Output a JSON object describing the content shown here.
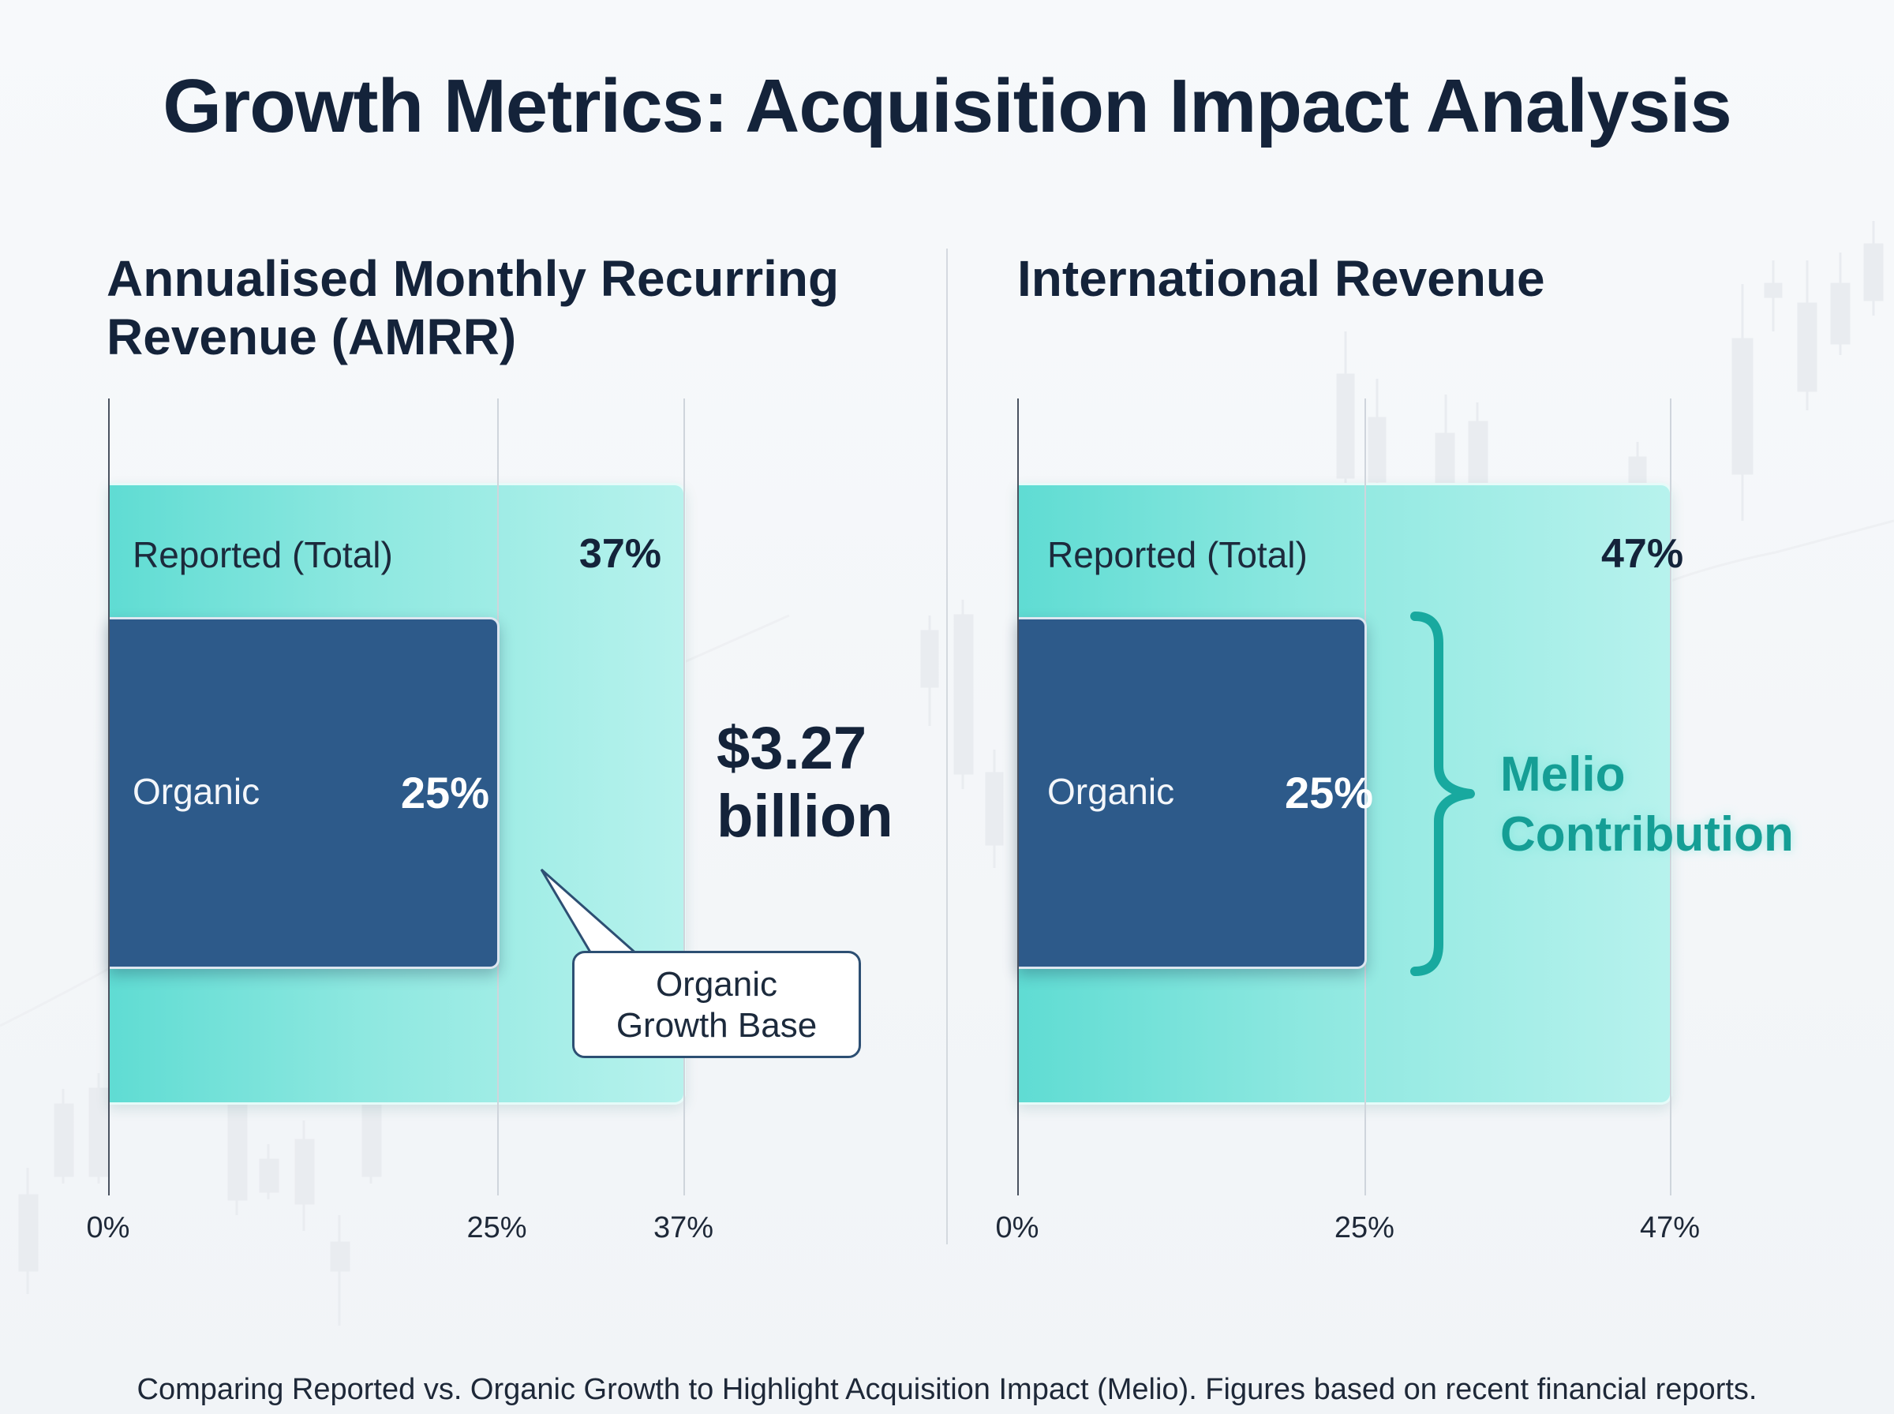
{
  "title": "Growth Metrics: Acquisition Impact Analysis",
  "footnote": "Comparing Reported vs. Organic Growth to Highlight Acquisition Impact (Melio). Figures based on recent financial reports.",
  "colors": {
    "reported": "#7fe3db",
    "organic": "#2d5a8a",
    "accent": "#159e95",
    "text": "#14233a"
  },
  "chart_data": [
    {
      "type": "bar",
      "title": "Annualised Monthly Recurring Revenue (AMRR)",
      "title_lines": [
        "Annualised Monthly Recurring",
        "Revenue (AMRR)"
      ],
      "series": [
        {
          "name": "Reported (Total)",
          "value": 37,
          "value_label": "37%"
        },
        {
          "name": "Organic",
          "value": 25,
          "value_label": "25%"
        }
      ],
      "xlim": [
        0,
        37
      ],
      "ticks": [
        {
          "value": 0,
          "label": "0%"
        },
        {
          "value": 25,
          "label": "25%"
        },
        {
          "value": 37,
          "label": "37%"
        }
      ],
      "annotations": {
        "amount_lines": [
          "$3.27",
          "billion"
        ],
        "callout_lines": [
          "Organic",
          "Growth Base"
        ]
      }
    },
    {
      "type": "bar",
      "title": "International Revenue",
      "series": [
        {
          "name": "Reported (Total)",
          "value": 47,
          "value_label": "47%"
        },
        {
          "name": "Organic",
          "value": 25,
          "value_label": "25%"
        }
      ],
      "xlim": [
        0,
        47
      ],
      "ticks": [
        {
          "value": 0,
          "label": "0%"
        },
        {
          "value": 25,
          "label": "25%"
        },
        {
          "value": 47,
          "label": "47%"
        }
      ],
      "annotations": {
        "bracket_lines": [
          "Melio",
          "Contribution"
        ]
      }
    }
  ]
}
